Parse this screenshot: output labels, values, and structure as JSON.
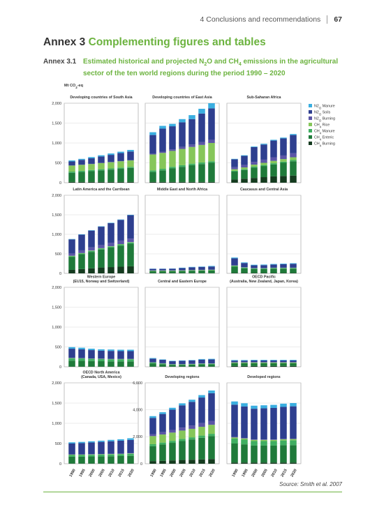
{
  "header": {
    "chapter_number": "4",
    "chapter_title": "Conclusions and recommendations",
    "page": "67"
  },
  "annex": {
    "prefix": "Annex 3",
    "title": "Complementing figures and tables"
  },
  "caption": {
    "label": "Annex 3.1",
    "text_a": "Estimated historical and projected N",
    "text_b": "O and CH",
    "text_c": " emissions in the agricultural sector of the ten world regions during the period 1990 – 2020",
    "sub_2": "2",
    "sub_4": "4"
  },
  "source": "Source: Smith et al. 2007",
  "colors": {
    "N2O Manure": "#3aaee0",
    "N2O Soils": "#2e3f8f",
    "N2O Burning": "#5b55a6",
    "CH4 Rice": "#86c65a",
    "CH4 Manure": "#3fae61",
    "CH4 Enteric": "#1f7a3a",
    "CH4 Burning": "#153b1f"
  },
  "chart_data": {
    "type": "bar",
    "stacked": true,
    "ylabel": "Mt CO2-eq",
    "x": [
      "1990",
      "1995",
      "2000",
      "2005",
      "2010",
      "2015",
      "2020"
    ],
    "series_order": [
      "CH4 Burning",
      "CH4 Enteric",
      "CH4 Manure",
      "CH4 Rice",
      "N2O Burning",
      "N2O Soils",
      "N2O Manure"
    ],
    "legend": [
      {
        "label": "N2O Manure",
        "series": "N2O Manure"
      },
      {
        "label": "N2O Soils",
        "series": "N2O Soils"
      },
      {
        "label": "N2O Burning",
        "series": "N2O Burning"
      },
      {
        "label": "CH4 Rice",
        "series": "CH4 Rice"
      },
      {
        "label": "CH4 Manure",
        "series": "CH4 Manure"
      },
      {
        "label": "CH4 Enteric",
        "series": "CH4 Enteric"
      },
      {
        "label": "CH4 Burning",
        "series": "CH4 Burning"
      }
    ],
    "ylim": [
      0,
      2000
    ],
    "yticks": [
      "0",
      "500",
      "1,000",
      "1,500",
      "2,000"
    ],
    "panels": [
      {
        "title": [
          "Developing countries of South Asia"
        ],
        "ylim": [
          0,
          2000
        ],
        "yticks": [
          "0",
          "500",
          "1,000",
          "1,500",
          "2,000"
        ],
        "series": {
          "CH4 Burning": [
            20,
            20,
            20,
            20,
            20,
            20,
            20
          ],
          "CH4 Enteric": [
            230,
            250,
            270,
            290,
            310,
            330,
            350
          ],
          "CH4 Manure": [
            30,
            30,
            30,
            30,
            30,
            30,
            30
          ],
          "CH4 Rice": [
            150,
            150,
            150,
            155,
            155,
            160,
            160
          ],
          "N2O Burning": [
            5,
            5,
            5,
            5,
            5,
            5,
            5
          ],
          "N2O Soils": [
            100,
            120,
            140,
            160,
            180,
            200,
            220
          ],
          "N2O Manure": [
            25,
            25,
            30,
            30,
            35,
            35,
            40
          ]
        }
      },
      {
        "title": [
          "Developing countries of East Asia"
        ],
        "ylim": [
          0,
          2000
        ],
        "yticks": [
          "0",
          "500",
          "1,000",
          "1,500",
          "2,000"
        ],
        "series": {
          "CH4 Burning": [
            20,
            20,
            20,
            20,
            20,
            20,
            20
          ],
          "CH4 Enteric": [
            250,
            290,
            340,
            380,
            420,
            450,
            480
          ],
          "CH4 Manure": [
            40,
            40,
            40,
            40,
            40,
            40,
            40
          ],
          "CH4 Rice": [
            400,
            400,
            400,
            410,
            420,
            440,
            460
          ],
          "N2O Burning": [
            20,
            30,
            40,
            50,
            60,
            70,
            80
          ],
          "N2O Soils": [
            470,
            580,
            580,
            620,
            640,
            720,
            790
          ],
          "N2O Manure": [
            70,
            70,
            60,
            80,
            100,
            120,
            130
          ]
        }
      },
      {
        "title": [
          "Sub-Saharan Africa"
        ],
        "ylim": [
          0,
          2000
        ],
        "yticks": [
          "0",
          "500",
          "1,000",
          "1,500",
          "2,000"
        ],
        "series": {
          "CH4 Burning": [
            80,
            100,
            120,
            140,
            160,
            170,
            180
          ],
          "CH4 Enteric": [
            200,
            220,
            260,
            280,
            300,
            330,
            360
          ],
          "CH4 Manure": [
            20,
            20,
            25,
            25,
            30,
            30,
            30
          ],
          "CH4 Rice": [
            40,
            45,
            50,
            55,
            60,
            65,
            70
          ],
          "N2O Burning": [
            50,
            60,
            70,
            80,
            90,
            90,
            100
          ],
          "N2O Soils": [
            200,
            230,
            370,
            380,
            420,
            430,
            460
          ],
          "N2O Manure": [
            10,
            15,
            15,
            20,
            20,
            20,
            25
          ]
        }
      },
      {
        "title": [
          "Latin America and the Carribean"
        ],
        "ylim": [
          0,
          2000
        ],
        "yticks": [
          "0",
          "500",
          "1,000",
          "1,500",
          "2,000"
        ],
        "series": {
          "CH4 Burning": [
            90,
            110,
            130,
            150,
            160,
            170,
            180
          ],
          "CH4 Enteric": [
            330,
            380,
            420,
            460,
            500,
            540,
            580
          ],
          "CH4 Manure": [
            20,
            20,
            25,
            25,
            25,
            30,
            30
          ],
          "CH4 Rice": [
            10,
            10,
            10,
            10,
            10,
            10,
            10
          ],
          "N2O Burning": [
            60,
            70,
            80,
            80,
            90,
            90,
            90
          ],
          "N2O Soils": [
            360,
            400,
            430,
            470,
            500,
            530,
            600
          ],
          "N2O Manure": [
            10,
            10,
            10,
            10,
            10,
            10,
            10
          ]
        }
      },
      {
        "title": [
          "Middle East and North Africa"
        ],
        "ylim": [
          0,
          2000
        ],
        "yticks": [
          "0",
          "500",
          "1,000",
          "1,500",
          "2,000"
        ],
        "series": {
          "CH4 Burning": [
            5,
            5,
            5,
            5,
            5,
            5,
            5
          ],
          "CH4 Enteric": [
            50,
            50,
            50,
            55,
            60,
            65,
            70
          ],
          "CH4 Manure": [
            5,
            5,
            5,
            5,
            5,
            5,
            5
          ],
          "CH4 Rice": [
            10,
            10,
            10,
            10,
            10,
            10,
            10
          ],
          "N2O Burning": [
            5,
            5,
            5,
            5,
            5,
            5,
            5
          ],
          "N2O Soils": [
            40,
            40,
            45,
            55,
            70,
            75,
            80
          ],
          "N2O Manure": [
            5,
            5,
            5,
            10,
            10,
            10,
            15
          ]
        }
      },
      {
        "title": [
          "Caucasus and Central Asia"
        ],
        "ylim": [
          0,
          2000
        ],
        "yticks": [
          "0",
          "500",
          "1,000",
          "1,500",
          "2,000"
        ],
        "series": {
          "CH4 Burning": [
            10,
            10,
            10,
            10,
            10,
            10,
            10
          ],
          "CH4 Enteric": [
            160,
            120,
            100,
            100,
            110,
            110,
            110
          ],
          "CH4 Manure": [
            20,
            15,
            15,
            15,
            15,
            15,
            15
          ],
          "CH4 Rice": [
            10,
            5,
            5,
            5,
            5,
            5,
            5
          ],
          "N2O Burning": [
            5,
            5,
            5,
            5,
            5,
            5,
            5
          ],
          "N2O Soils": [
            180,
            110,
            70,
            75,
            80,
            90,
            100
          ],
          "N2O Manure": [
            20,
            15,
            15,
            15,
            15,
            15,
            15
          ]
        }
      },
      {
        "title": [
          "Western Europe",
          "(EU15, Norway and Switzerland)"
        ],
        "ylim": [
          0,
          2000
        ],
        "yticks": [
          "0",
          "500",
          "1,000",
          "1,500",
          "2,000"
        ],
        "series": {
          "CH4 Burning": [
            5,
            5,
            5,
            5,
            5,
            5,
            5
          ],
          "CH4 Enteric": [
            150,
            145,
            140,
            135,
            130,
            130,
            130
          ],
          "CH4 Manure": [
            60,
            60,
            55,
            55,
            55,
            55,
            55
          ],
          "CH4 Rice": [
            5,
            5,
            5,
            5,
            5,
            5,
            5
          ],
          "N2O Burning": [
            5,
            5,
            5,
            5,
            5,
            5,
            5
          ],
          "N2O Soils": [
            230,
            220,
            210,
            200,
            200,
            195,
            195
          ],
          "N2O Manure": [
            40,
            40,
            35,
            35,
            35,
            35,
            35
          ]
        }
      },
      {
        "title": [
          "Central and Eastern Europe"
        ],
        "ylim": [
          0,
          2000
        ],
        "yticks": [
          "0",
          "500",
          "1,000",
          "1,500",
          "2,000"
        ],
        "series": {
          "CH4 Burning": [
            5,
            5,
            5,
            5,
            5,
            5,
            5
          ],
          "CH4 Enteric": [
            80,
            60,
            45,
            45,
            50,
            55,
            55
          ],
          "CH4 Manure": [
            20,
            15,
            10,
            10,
            10,
            15,
            15
          ],
          "CH4 Rice": [
            5,
            5,
            5,
            5,
            5,
            5,
            5
          ],
          "N2O Burning": [
            5,
            5,
            5,
            5,
            5,
            5,
            5
          ],
          "N2O Soils": [
            90,
            85,
            70,
            80,
            85,
            95,
            100
          ],
          "N2O Manure": [
            15,
            10,
            10,
            10,
            10,
            15,
            15
          ]
        }
      },
      {
        "title": [
          "OECD Pacific",
          "(Australia, New Zealand, Japan, Korea)"
        ],
        "ylim": [
          0,
          2000
        ],
        "yticks": [
          "0",
          "500",
          "1,000",
          "1,500",
          "2,000"
        ],
        "series": {
          "CH4 Burning": [
            20,
            20,
            20,
            20,
            20,
            20,
            20
          ],
          "CH4 Enteric": [
            70,
            70,
            70,
            70,
            70,
            70,
            70
          ],
          "CH4 Manure": [
            5,
            5,
            5,
            5,
            5,
            5,
            5
          ],
          "CH4 Rice": [
            15,
            15,
            15,
            15,
            15,
            15,
            15
          ],
          "N2O Burning": [
            5,
            5,
            5,
            5,
            5,
            5,
            5
          ],
          "N2O Soils": [
            40,
            40,
            45,
            45,
            45,
            45,
            45
          ],
          "N2O Manure": [
            15,
            15,
            15,
            15,
            15,
            15,
            15
          ]
        }
      },
      {
        "title": [
          "OECD North America",
          "(Canada, USA, Mexico)"
        ],
        "ylim": [
          0,
          2000
        ],
        "yticks": [
          "0",
          "500",
          "1,000",
          "1,500",
          "2,000"
        ],
        "series": {
          "CH4 Burning": [
            5,
            5,
            5,
            5,
            5,
            5,
            5
          ],
          "CH4 Enteric": [
            170,
            170,
            175,
            175,
            180,
            185,
            190
          ],
          "CH4 Manure": [
            40,
            40,
            40,
            45,
            45,
            45,
            50
          ],
          "CH4 Rice": [
            10,
            10,
            10,
            10,
            10,
            10,
            10
          ],
          "N2O Burning": [
            5,
            5,
            5,
            5,
            5,
            5,
            5
          ],
          "N2O Soils": [
            270,
            280,
            290,
            300,
            310,
            320,
            330
          ],
          "N2O Manure": [
            30,
            30,
            30,
            30,
            35,
            35,
            40
          ]
        }
      },
      {
        "title": [
          "Developing regions"
        ],
        "ylim": [
          0,
          6000
        ],
        "yticks": [
          "0",
          "2,000",
          "4,000",
          "6,000"
        ],
        "series": {
          "CH4 Burning": [
            200,
            220,
            250,
            280,
            300,
            320,
            350
          ],
          "CH4 Enteric": [
            1100,
            1200,
            1300,
            1400,
            1500,
            1600,
            1700
          ],
          "CH4 Manure": [
            150,
            150,
            150,
            160,
            160,
            170,
            170
          ],
          "CH4 Rice": [
            600,
            600,
            610,
            620,
            630,
            650,
            670
          ],
          "N2O Burning": [
            150,
            170,
            200,
            220,
            250,
            270,
            290
          ],
          "N2O Soils": [
            1200,
            1350,
            1500,
            1650,
            1750,
            1900,
            2050
          ],
          "N2O Manure": [
            130,
            130,
            140,
            150,
            160,
            180,
            200
          ]
        }
      },
      {
        "title": [
          "Developed regions"
        ],
        "ylim": [
          0,
          2000
        ],
        "yticks": [
          "0",
          "500",
          "1,000",
          "1,500",
          "2,000"
        ],
        "series": {
          "CH4 Burning": [
            30,
            30,
            30,
            30,
            30,
            30,
            30
          ],
          "CH4 Enteric": [
            470,
            450,
            420,
            420,
            420,
            430,
            430
          ],
          "CH4 Manure": [
            120,
            115,
            110,
            110,
            110,
            115,
            120
          ],
          "CH4 Rice": [
            30,
            30,
            30,
            30,
            30,
            30,
            30
          ],
          "N2O Burning": [
            10,
            10,
            10,
            10,
            10,
            10,
            10
          ],
          "N2O Soils": [
            800,
            780,
            760,
            770,
            780,
            790,
            800
          ],
          "N2O Manure": [
            80,
            80,
            75,
            75,
            75,
            80,
            80
          ]
        }
      }
    ]
  }
}
